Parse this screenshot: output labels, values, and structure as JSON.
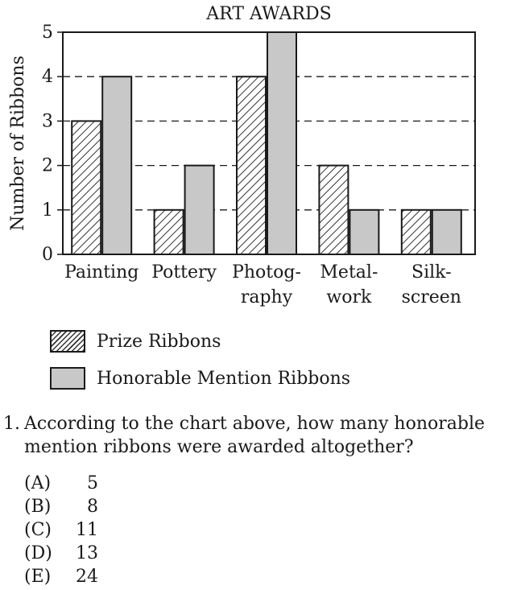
{
  "chart_data": {
    "type": "bar",
    "title": "ART AWARDS",
    "ylabel": "Number of Ribbons",
    "xlabel": "",
    "ylim": [
      0,
      5
    ],
    "yticks": [
      0,
      1,
      2,
      3,
      4,
      5
    ],
    "grid": "dashed horizontal",
    "categories": [
      [
        "Painting"
      ],
      [
        "Pottery"
      ],
      [
        "Photog-",
        "raphy"
      ],
      [
        "Metal-",
        "work"
      ],
      [
        "Silk-",
        "screen"
      ]
    ],
    "series": [
      {
        "name": "Prize Ribbons",
        "pattern": "hatched",
        "values": [
          3,
          1,
          4,
          2,
          1
        ]
      },
      {
        "name": "Honorable Mention Ribbons",
        "color": "#c8c8c8",
        "values": [
          4,
          2,
          5,
          1,
          1
        ]
      }
    ],
    "legend_position": "below"
  },
  "question": {
    "number": "1.",
    "text": "According to the chart above, how many honorable mention ribbons were awarded altogether?",
    "choices": [
      {
        "letter": "(A)",
        "value": "5"
      },
      {
        "letter": "(B)",
        "value": "8"
      },
      {
        "letter": "(C)",
        "value": "11"
      },
      {
        "letter": "(D)",
        "value": "13"
      },
      {
        "letter": "(E)",
        "value": "24"
      }
    ]
  }
}
